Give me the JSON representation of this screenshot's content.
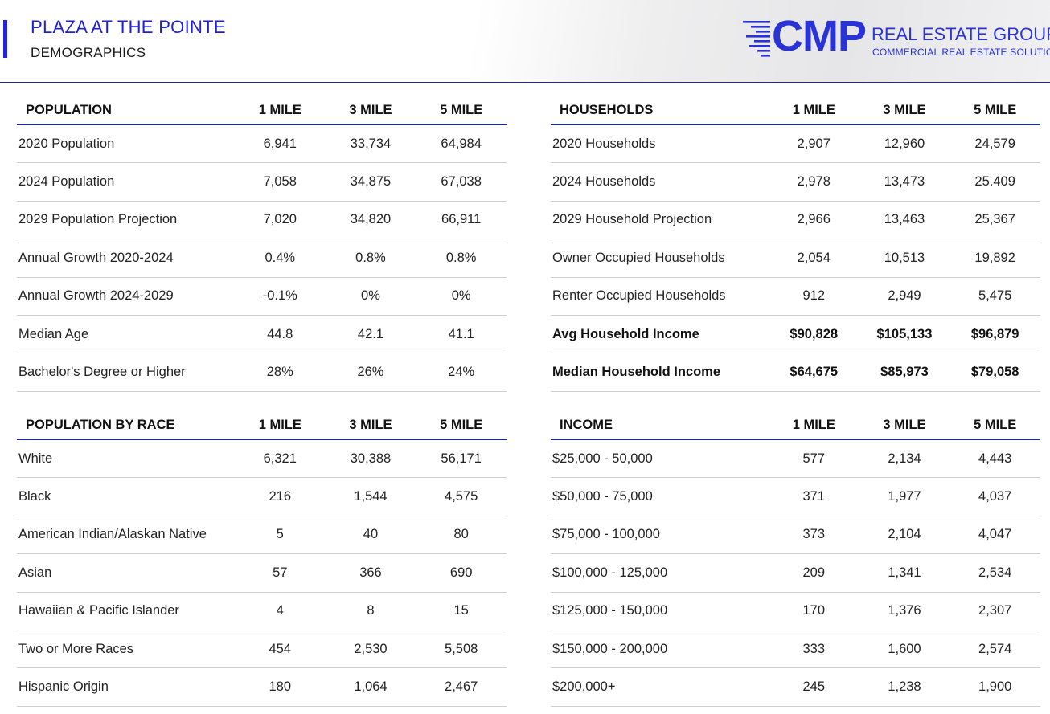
{
  "header": {
    "title": "PLAZA AT THE POINTE",
    "subtitle": "DEMOGRAPHICS"
  },
  "logo": {
    "mark": "CMP",
    "name": "REAL ESTATE GROUP",
    "tagline": "COMMERCIAL REAL ESTATE SOLUTIONS",
    "color": "#2a33d6"
  },
  "colors": {
    "accent": "#2323d8",
    "rule": "#1d2a8a"
  },
  "tables": {
    "population": {
      "headers": [
        "POPULATION",
        "1 MILE",
        "3 MILE",
        "5 MILE"
      ],
      "rows": [
        [
          "2020 Population",
          "6,941",
          "33,734",
          "64,984"
        ],
        [
          "2024 Population",
          "7,058",
          "34,875",
          "67,038"
        ],
        [
          "2029 Population Projection",
          "7,020",
          "34,820",
          "66,911"
        ],
        [
          "Annual Growth 2020-2024",
          "0.4%",
          "0.8%",
          "0.8%"
        ],
        [
          "Annual Growth 2024-2029",
          "-0.1%",
          "0%",
          "0%"
        ],
        [
          "Median Age",
          "44.8",
          "42.1",
          "41.1"
        ],
        [
          "Bachelor's Degree or Higher",
          "28%",
          "26%",
          "24%"
        ]
      ]
    },
    "households": {
      "headers": [
        "HOUSEHOLDS",
        "1 MILE",
        "3 MILE",
        "5 MILE"
      ],
      "rows": [
        [
          "2020 Households",
          "2,907",
          "12,960",
          "24,579"
        ],
        [
          "2024 Households",
          "2,978",
          "13,473",
          "25.409"
        ],
        [
          "2029 Household Projection",
          "2,966",
          "13,463",
          "25,367"
        ],
        [
          "Owner Occupied Households",
          "2,054",
          "10,513",
          "19,892"
        ],
        [
          "Renter Occupied Households",
          "912",
          "2,949",
          "5,475"
        ],
        [
          "Avg Household Income",
          "$90,828",
          "$105,133",
          "$96,879"
        ],
        [
          "Median Household Income",
          "$64,675",
          "$85,973",
          "$79,058"
        ]
      ]
    },
    "race": {
      "headers": [
        "POPULATION BY RACE",
        "1 MILE",
        "3 MILE",
        "5 MILE"
      ],
      "rows": [
        [
          "White",
          "6,321",
          "30,388",
          "56,171"
        ],
        [
          "Black",
          "216",
          "1,544",
          "4,575"
        ],
        [
          "American Indian/Alaskan Native",
          "5",
          "40",
          "80"
        ],
        [
          "Asian",
          "57",
          "366",
          "690"
        ],
        [
          "Hawaiian & Pacific Islander",
          "4",
          "8",
          "15"
        ],
        [
          "Two or More Races",
          "454",
          "2,530",
          "5,508"
        ],
        [
          "Hispanic Origin",
          "180",
          "1,064",
          "2,467"
        ]
      ]
    },
    "income": {
      "headers": [
        "INCOME",
        "1 MILE",
        "3 MILE",
        "5 MILE"
      ],
      "rows": [
        [
          "$25,000 - 50,000",
          "577",
          "2,134",
          "4,443"
        ],
        [
          "$50,000 - 75,000",
          "371",
          "1,977",
          "4,037"
        ],
        [
          "$75,000 - 100,000",
          "373",
          "2,104",
          "4,047"
        ],
        [
          "$100,000 - 125,000",
          "209",
          "1,341",
          "2,534"
        ],
        [
          "$125,000 - 150,000",
          "170",
          "1,376",
          "2,307"
        ],
        [
          "$150,000 - 200,000",
          "333",
          "1,600",
          "2,574"
        ],
        [
          "$200,000+",
          "245",
          "1,238",
          "1,900"
        ]
      ]
    }
  }
}
